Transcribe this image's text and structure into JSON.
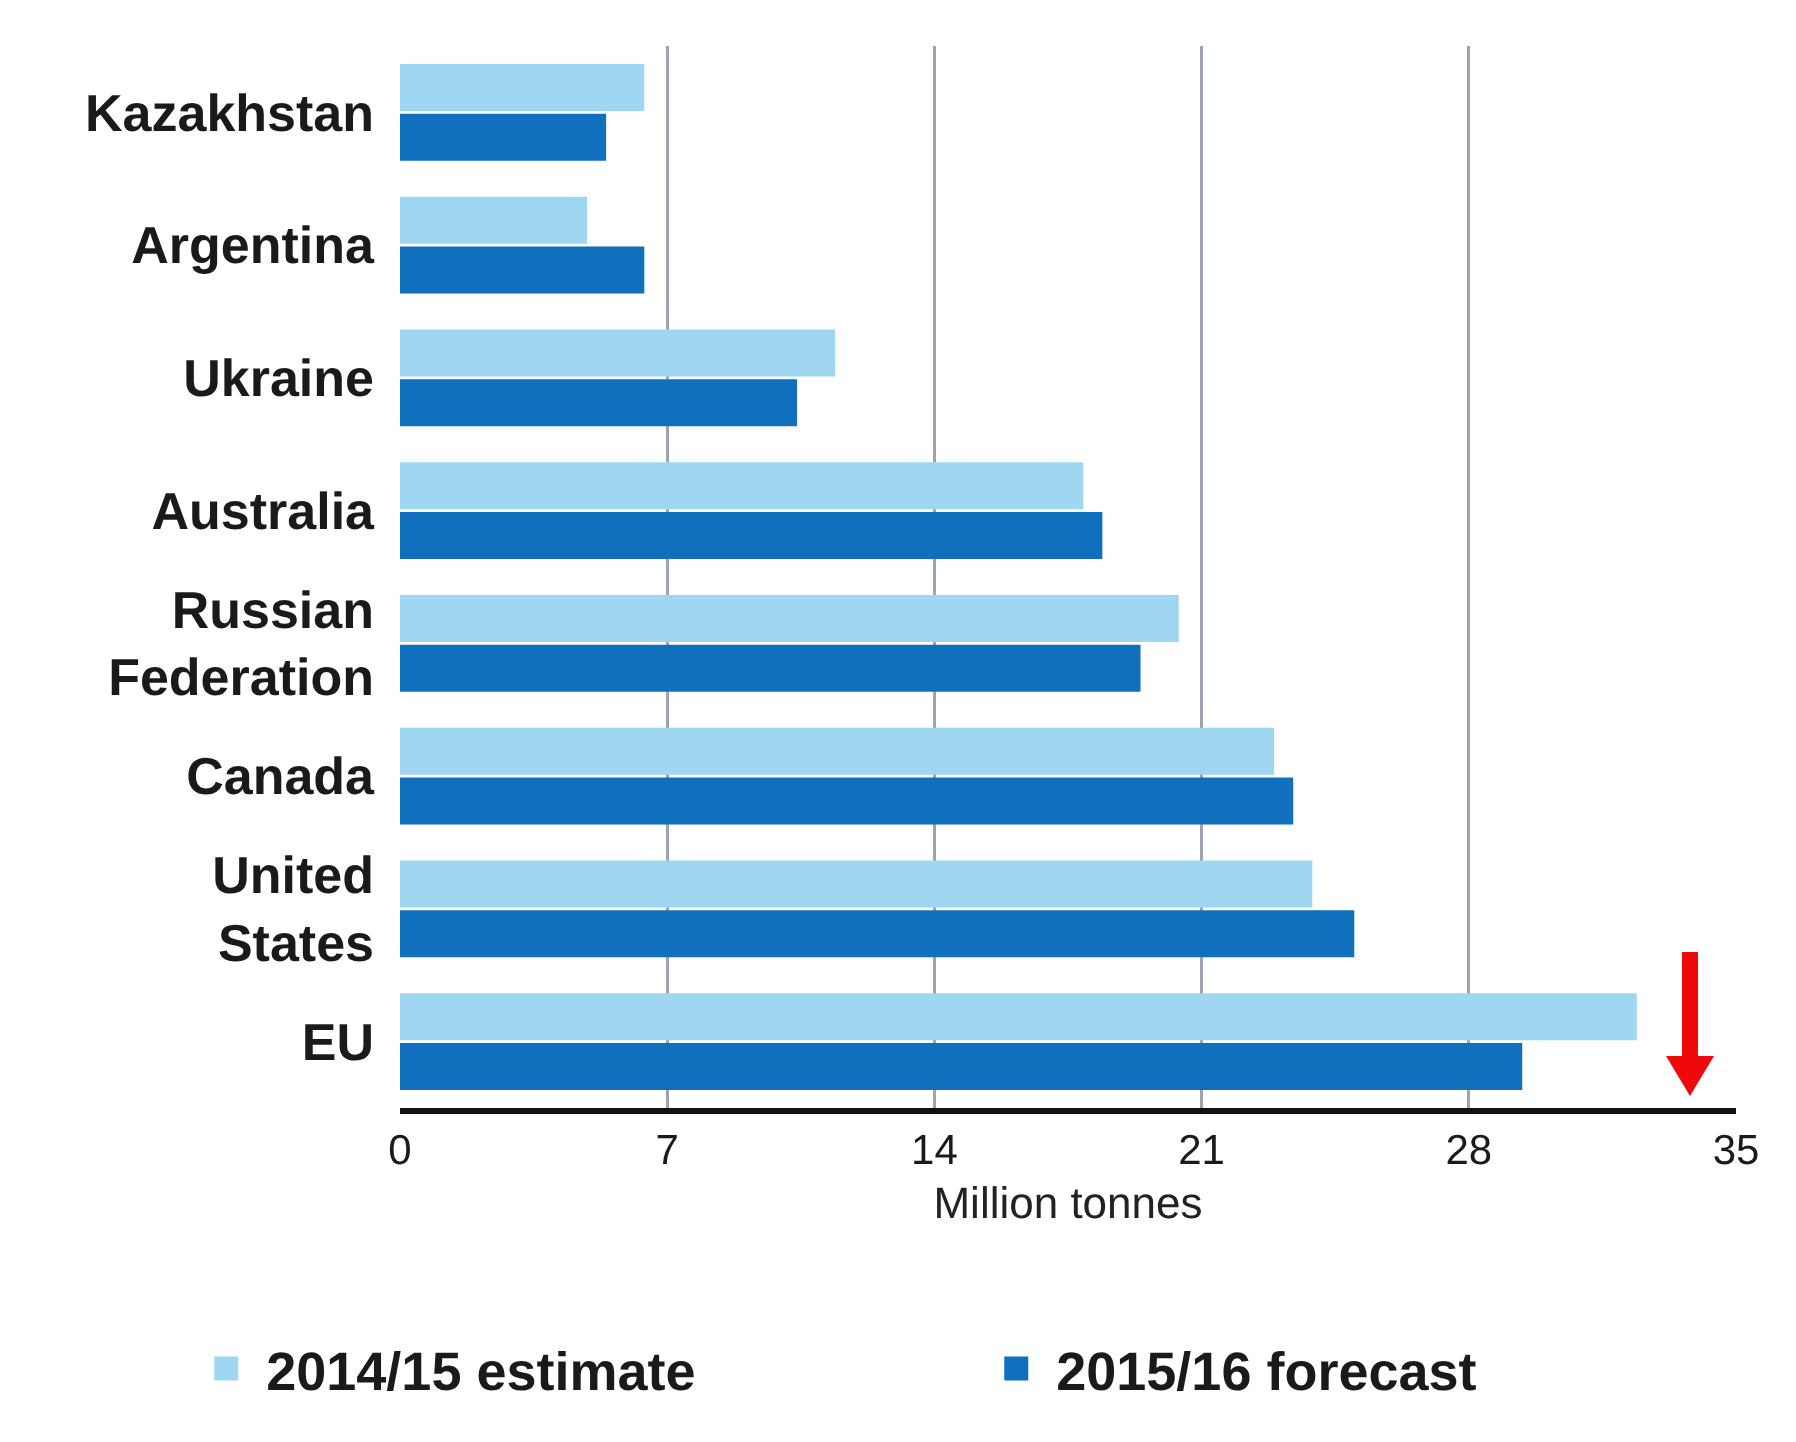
{
  "chart_data": {
    "type": "bar",
    "orientation": "horizontal",
    "xlabel": "Million tonnes",
    "categories": [
      "Kazakhstan",
      "Argentina",
      "Ukraine",
      "Australia",
      "Russian Federation",
      "Canada",
      "United States",
      "EU"
    ],
    "series": [
      {
        "name": "2014/15 estimate",
        "color": "#9fd7f3",
        "values": [
          6.4,
          4.9,
          11.4,
          17.9,
          20.4,
          22.9,
          23.9,
          32.4
        ]
      },
      {
        "name": "2015/16 forecast",
        "color": "#1170bd",
        "values": [
          5.4,
          6.4,
          10.4,
          18.4,
          19.4,
          23.4,
          25.0,
          29.4
        ]
      }
    ],
    "xlim": [
      0,
      35
    ],
    "xticks": [
      0,
      7,
      14,
      21,
      28,
      35
    ],
    "grid": "x",
    "legend": "bottom"
  }
}
